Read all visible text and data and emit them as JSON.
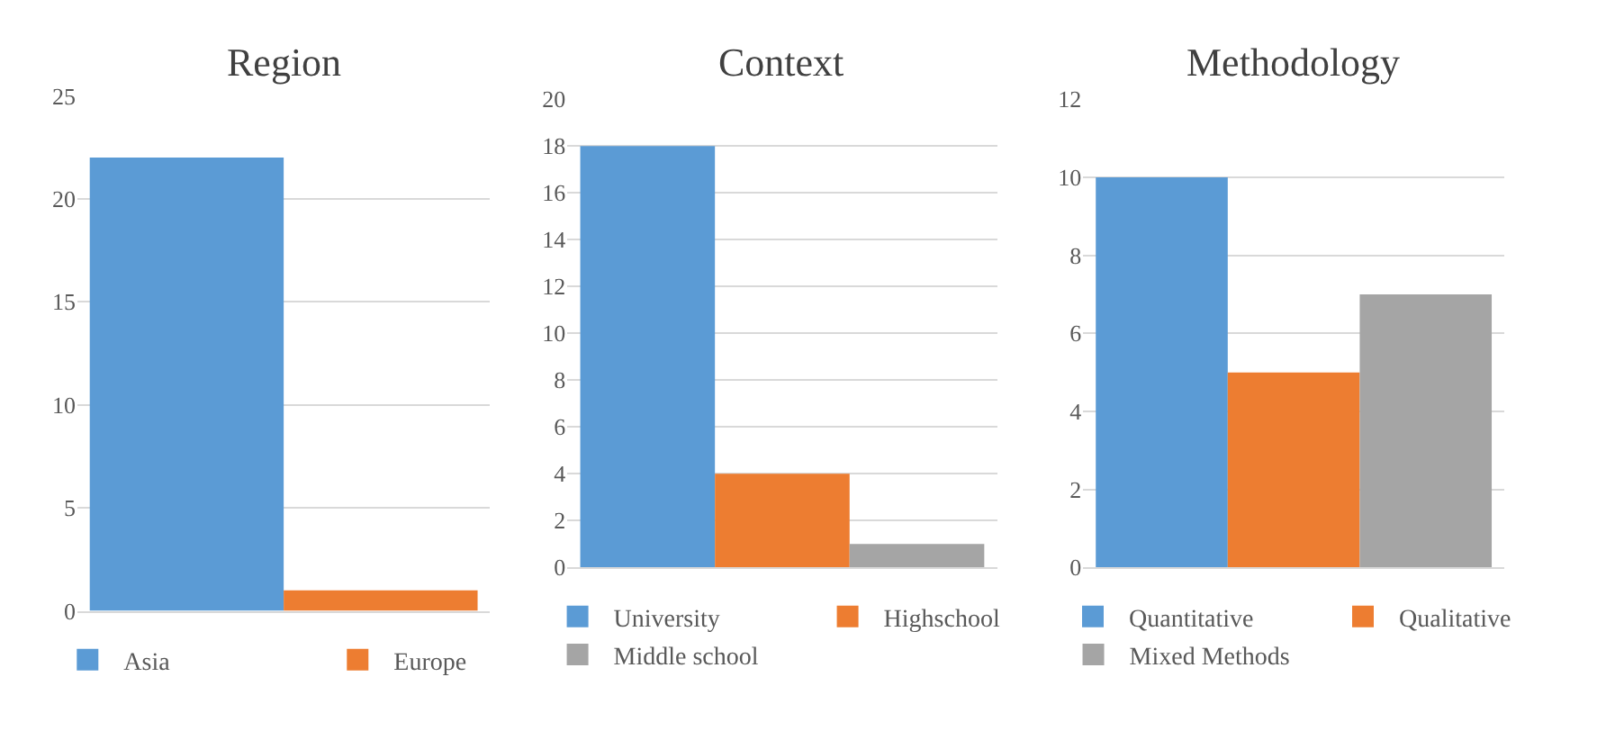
{
  "chart_data": [
    {
      "type": "bar",
      "title": "Region",
      "categories": [
        null
      ],
      "series": [
        {
          "name": "Asia",
          "color": "#5b9bd5",
          "values": [
            22
          ]
        },
        {
          "name": "Europe",
          "color": "#ed7d31",
          "values": [
            1
          ]
        }
      ],
      "ylim": [
        0,
        25
      ],
      "yticks": [
        0,
        5,
        10,
        15,
        20,
        25
      ],
      "grid": "y",
      "legend": "bottom",
      "tick_labels": "y"
    },
    {
      "type": "bar",
      "title": "Context",
      "categories": [
        null
      ],
      "series": [
        {
          "name": "University",
          "color": "#5b9bd5",
          "values": [
            18
          ]
        },
        {
          "name": "Highschool",
          "color": "#ed7d31",
          "values": [
            4
          ]
        },
        {
          "name": "Middle school",
          "color": "#a5a5a5",
          "values": [
            1
          ]
        }
      ],
      "ylim": [
        0,
        20
      ],
      "yticks": [
        0,
        2,
        4,
        6,
        8,
        10,
        12,
        14,
        16,
        18,
        20
      ],
      "grid": "y",
      "legend": "bottom",
      "tick_labels": "y"
    },
    {
      "type": "bar",
      "title": "Methodology",
      "categories": [
        null
      ],
      "series": [
        {
          "name": "Quantitative",
          "color": "#5b9bd5",
          "values": [
            10
          ]
        },
        {
          "name": "Qualitative",
          "color": "#ed7d31",
          "values": [
            5
          ]
        },
        {
          "name": "Mixed Methods",
          "color": "#a5a5a5",
          "values": [
            7
          ]
        }
      ],
      "ylim": [
        0,
        12
      ],
      "yticks": [
        0,
        2,
        4,
        6,
        8,
        10,
        12
      ],
      "grid": "y",
      "legend": "bottom",
      "tick_labels": "y"
    }
  ]
}
